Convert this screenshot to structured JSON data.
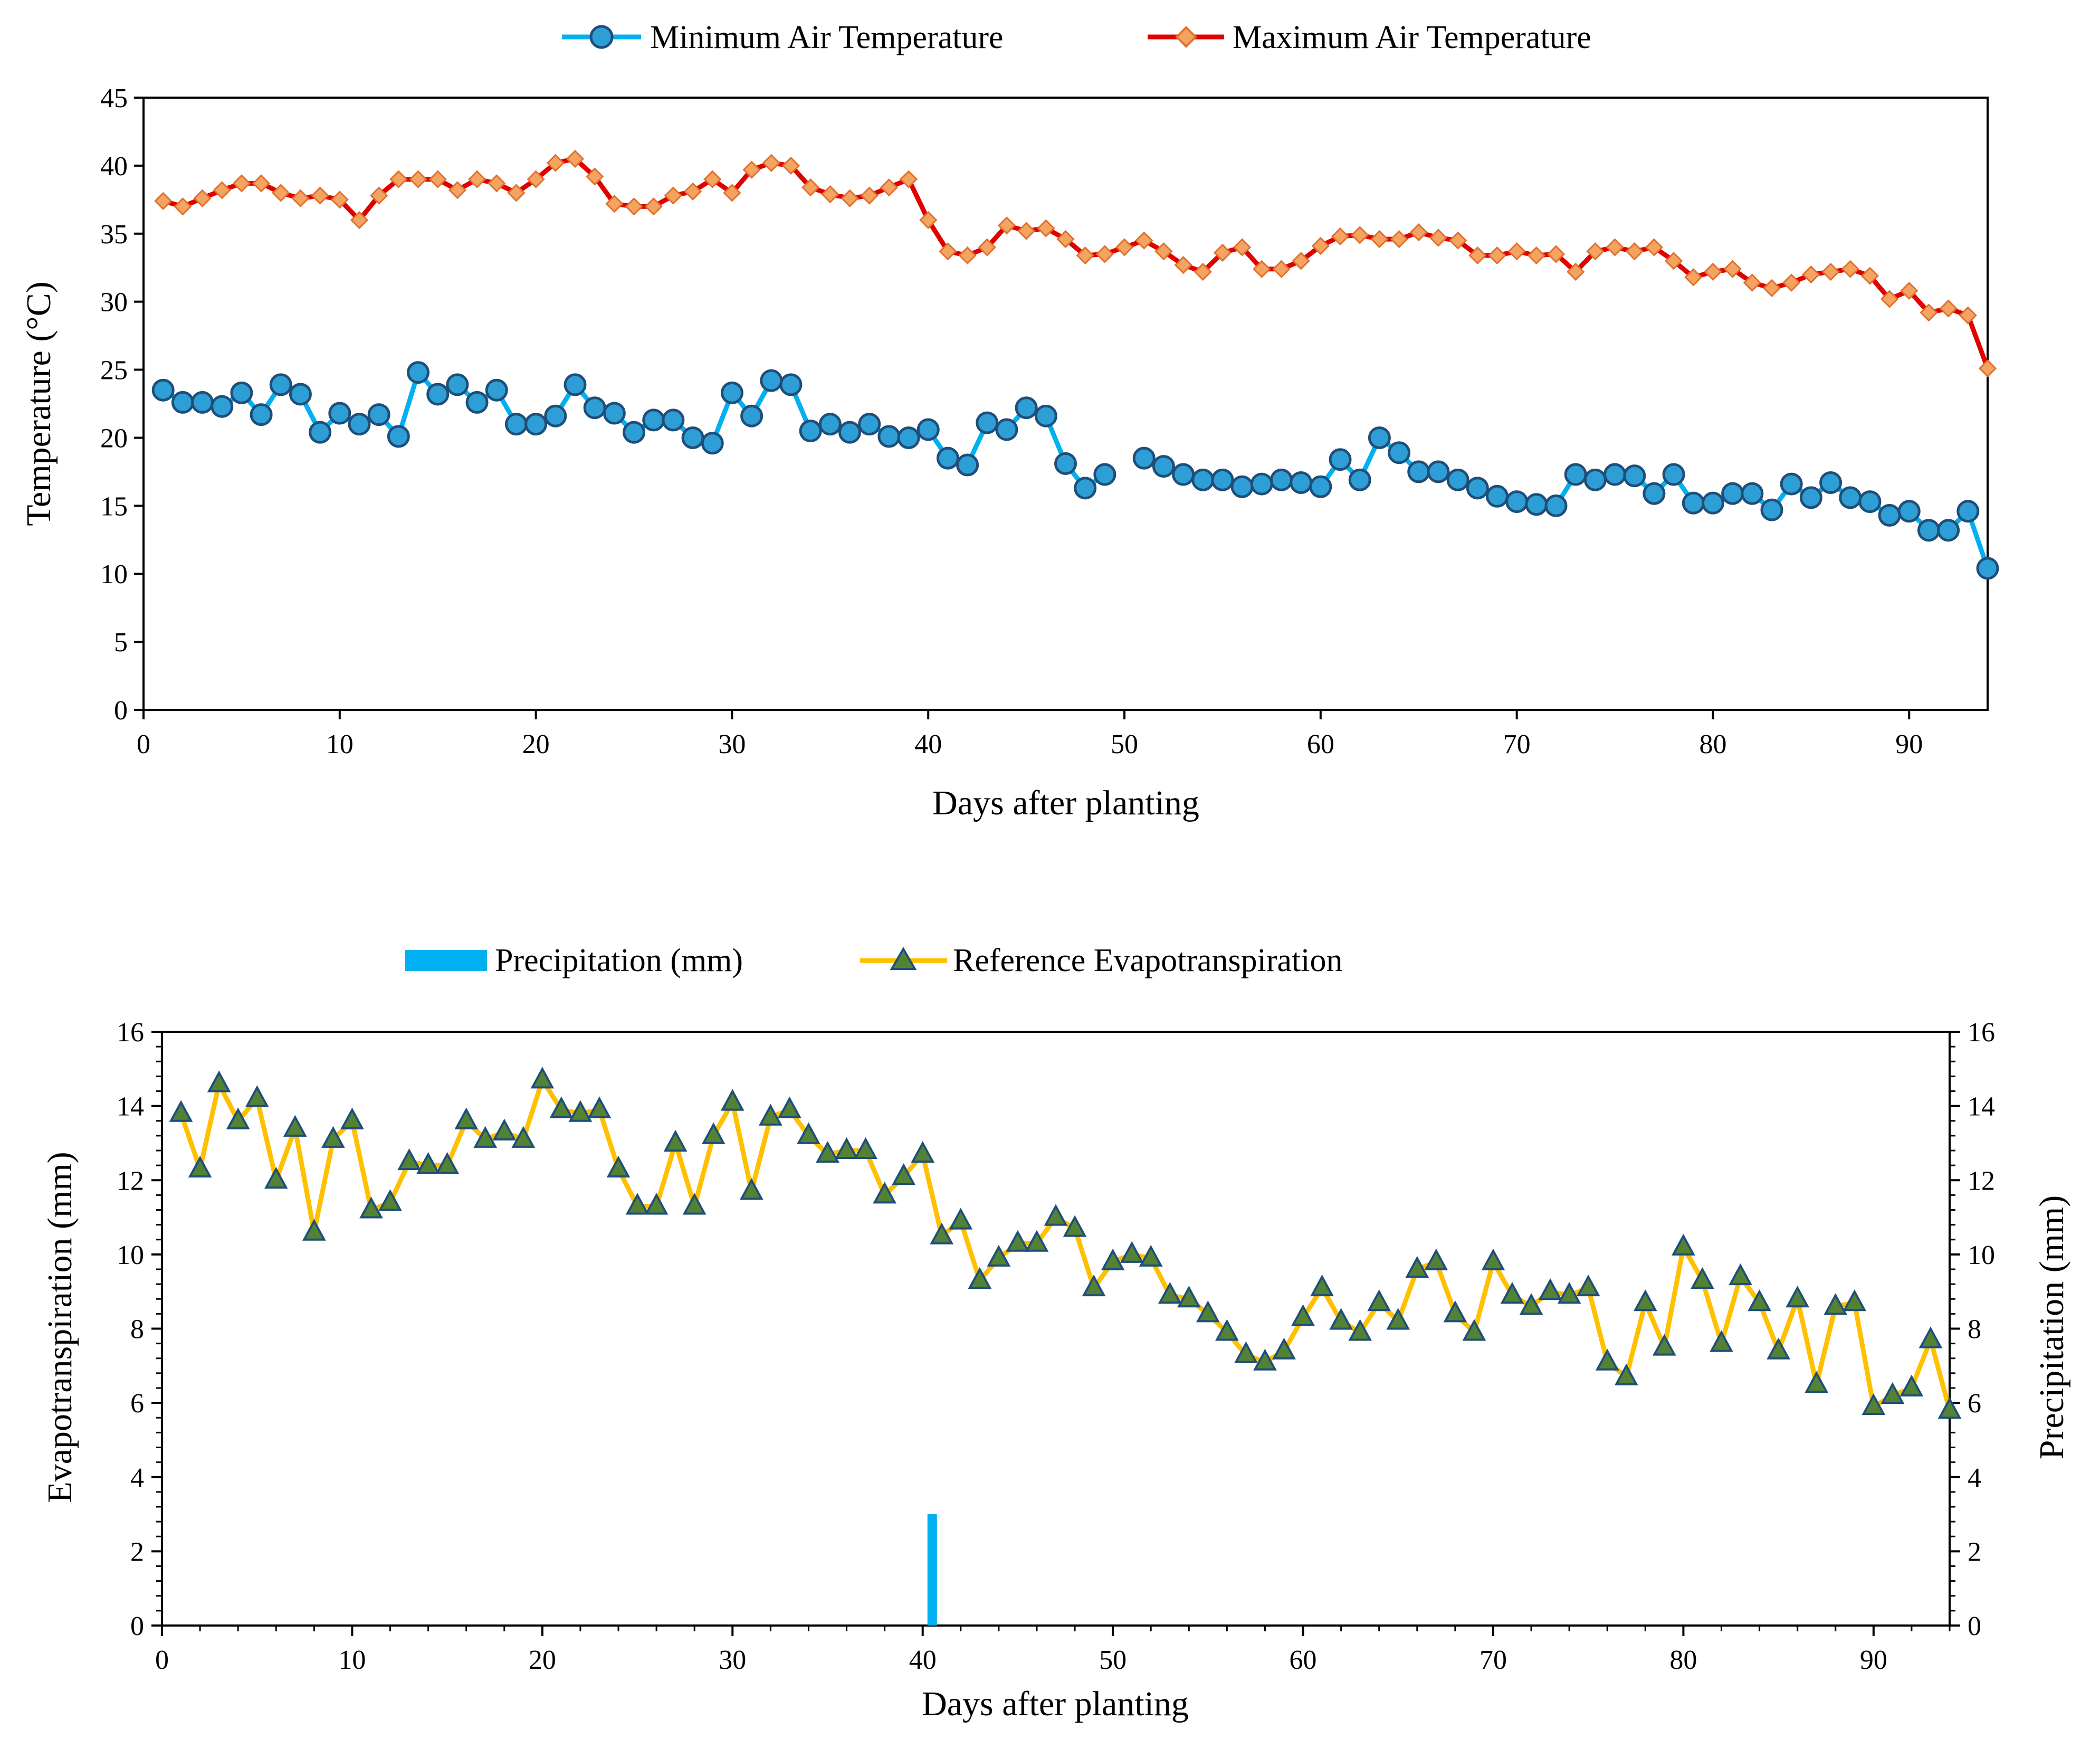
{
  "chart_data": [
    {
      "type": "line",
      "title": "",
      "xlabel": "Days after planting",
      "ylabel": "Temperature (°C)",
      "xlim": [
        0,
        94
      ],
      "ylim": [
        0,
        45
      ],
      "xticks": [
        0,
        10,
        20,
        30,
        40,
        50,
        60,
        70,
        80,
        90
      ],
      "yticks": [
        0,
        5,
        10,
        15,
        20,
        25,
        30,
        35,
        40,
        45
      ],
      "legend": "top-center",
      "grid": false,
      "series": [
        {
          "name": "Minimum Air Temperature",
          "color": "#00B0F0",
          "marker": "circle",
          "marker_fill": "#2E9FD6",
          "marker_edge": "#1F4E79",
          "x": [
            1,
            2,
            3,
            4,
            5,
            6,
            7,
            8,
            9,
            10,
            11,
            12,
            13,
            14,
            15,
            16,
            17,
            18,
            19,
            20,
            21,
            22,
            23,
            24,
            25,
            26,
            27,
            28,
            29,
            30,
            31,
            32,
            33,
            34,
            35,
            36,
            37,
            38,
            39,
            40,
            41,
            42,
            43,
            44,
            45,
            46,
            47,
            48,
            49,
            null,
            51,
            52,
            53,
            54,
            55,
            56,
            57,
            58,
            59,
            60,
            61,
            62,
            63,
            64,
            65,
            66,
            67,
            68,
            69,
            70,
            71,
            72,
            73,
            74,
            75,
            76,
            77,
            78,
            79,
            80,
            81,
            82,
            83,
            84,
            85,
            86,
            87,
            88,
            89,
            90,
            91,
            92,
            93,
            94
          ],
          "y": [
            23.5,
            22.6,
            22.6,
            22.3,
            23.3,
            21.7,
            23.9,
            23.2,
            20.4,
            21.8,
            21.0,
            21.7,
            20.1,
            24.8,
            23.2,
            23.9,
            22.6,
            23.5,
            21.0,
            21.0,
            21.6,
            23.9,
            22.2,
            21.8,
            20.4,
            21.3,
            21.3,
            20.0,
            19.6,
            23.3,
            21.6,
            24.2,
            23.9,
            20.5,
            21.0,
            20.4,
            21.0,
            20.1,
            20.0,
            20.6,
            18.5,
            18.0,
            21.1,
            20.6,
            22.2,
            21.6,
            18.1,
            16.3,
            17.3,
            null,
            18.5,
            17.9,
            17.3,
            16.9,
            16.9,
            16.4,
            16.6,
            16.9,
            16.7,
            16.4,
            18.4,
            16.9,
            20.0,
            18.9,
            17.5,
            17.5,
            16.9,
            16.3,
            15.7,
            15.3,
            15.1,
            15.0,
            17.3,
            16.9,
            17.3,
            17.2,
            15.9,
            17.3,
            15.2,
            15.2,
            15.9,
            15.9,
            14.7,
            16.6,
            15.6,
            16.7,
            15.6,
            15.3,
            14.3,
            14.6,
            13.2,
            13.2,
            14.6,
            10.4
          ]
        },
        {
          "name": "Maximum Air Temperature",
          "color": "#E00000",
          "marker": "diamond",
          "marker_fill": "#F4A460",
          "marker_edge": "#E07030",
          "x": [
            1,
            2,
            3,
            4,
            5,
            6,
            7,
            8,
            9,
            10,
            11,
            12,
            13,
            14,
            15,
            16,
            17,
            18,
            19,
            20,
            21,
            22,
            23,
            24,
            25,
            26,
            27,
            28,
            29,
            30,
            31,
            32,
            33,
            34,
            35,
            36,
            37,
            38,
            39,
            40,
            41,
            42,
            43,
            44,
            45,
            46,
            47,
            48,
            49,
            50,
            51,
            52,
            53,
            54,
            55,
            56,
            57,
            58,
            59,
            60,
            61,
            62,
            63,
            64,
            65,
            66,
            67,
            68,
            69,
            70,
            71,
            72,
            73,
            74,
            75,
            76,
            77,
            78,
            79,
            80,
            81,
            82,
            83,
            84,
            85,
            86,
            87,
            88,
            89,
            90,
            91,
            92,
            93,
            94
          ],
          "y": [
            37.4,
            37.0,
            37.6,
            38.2,
            38.7,
            38.7,
            38.0,
            37.6,
            37.8,
            37.5,
            36.0,
            37.8,
            39.0,
            39.0,
            39.0,
            38.2,
            39.0,
            38.7,
            38.0,
            39.0,
            40.2,
            40.5,
            39.2,
            37.2,
            37.0,
            37.0,
            37.8,
            38.1,
            39.0,
            38.0,
            39.7,
            40.2,
            40.0,
            38.4,
            37.9,
            37.6,
            37.8,
            38.4,
            39.0,
            36.0,
            33.7,
            33.4,
            34.0,
            35.6,
            35.2,
            35.4,
            34.6,
            33.4,
            33.5,
            34.0,
            34.5,
            33.7,
            32.7,
            32.2,
            33.6,
            34.0,
            32.4,
            32.4,
            33.0,
            34.1,
            34.8,
            34.9,
            34.6,
            34.6,
            35.1,
            34.7,
            34.5,
            33.4,
            33.4,
            33.7,
            33.4,
            33.5,
            32.2,
            33.7,
            34.0,
            33.7,
            34.0,
            33.0,
            31.8,
            32.2,
            32.4,
            31.4,
            31.0,
            31.4,
            32.0,
            32.2,
            32.4,
            31.9,
            30.2,
            30.8,
            29.2,
            29.5,
            29.0,
            25.1
          ]
        }
      ]
    },
    {
      "type": "line",
      "title": "",
      "xlabel": "Days after planting",
      "ylabel": "Evapotranspiration (mm)",
      "y2label": "Precipitation (mm)",
      "xlim": [
        0,
        94
      ],
      "ylim": [
        0,
        16
      ],
      "y2lim": [
        0,
        16
      ],
      "xticks": [
        0,
        10,
        20,
        30,
        40,
        50,
        60,
        70,
        80,
        90
      ],
      "yticks": [
        0,
        2,
        4,
        6,
        8,
        10,
        12,
        14,
        16
      ],
      "y2ticks": [
        0,
        2,
        4,
        6,
        8,
        10,
        12,
        14,
        16
      ],
      "legend": "top-center",
      "grid": false,
      "series": [
        {
          "name": "Precipitation (mm)",
          "type": "bar",
          "axis": "right",
          "color": "#00B0F0",
          "x": [
            40.5
          ],
          "y": [
            3.0
          ]
        },
        {
          "name": "Reference Evapotranspiration",
          "type": "line",
          "axis": "left",
          "color": "#FFC000",
          "marker": "triangle",
          "marker_fill": "#548235",
          "marker_edge": "#1F4E79",
          "x": [
            1,
            2,
            3,
            4,
            5,
            6,
            7,
            8,
            9,
            10,
            11,
            12,
            13,
            14,
            15,
            16,
            17,
            18,
            19,
            20,
            21,
            22,
            23,
            24,
            25,
            26,
            27,
            28,
            29,
            30,
            31,
            32,
            33,
            34,
            35,
            36,
            37,
            38,
            39,
            40,
            41,
            42,
            43,
            44,
            45,
            46,
            47,
            48,
            49,
            50,
            51,
            52,
            53,
            54,
            55,
            56,
            57,
            58,
            59,
            60,
            61,
            62,
            63,
            64,
            65,
            66,
            67,
            68,
            69,
            70,
            71,
            72,
            73,
            74,
            75,
            76,
            77,
            78,
            79,
            80,
            81,
            82,
            83,
            84,
            85,
            86,
            87,
            88,
            89,
            90,
            91,
            92,
            93,
            94
          ],
          "y": [
            13.8,
            12.3,
            14.6,
            13.6,
            14.2,
            12.0,
            13.4,
            10.6,
            13.1,
            13.6,
            11.2,
            11.4,
            12.5,
            12.4,
            12.4,
            13.6,
            13.1,
            13.3,
            13.1,
            14.7,
            13.9,
            13.8,
            13.9,
            12.3,
            11.3,
            11.3,
            13.0,
            11.3,
            13.2,
            14.1,
            11.7,
            13.7,
            13.9,
            13.2,
            12.7,
            12.8,
            12.8,
            11.6,
            12.1,
            12.7,
            10.5,
            10.9,
            9.3,
            9.9,
            10.3,
            10.3,
            11.0,
            10.7,
            9.1,
            9.8,
            10.0,
            9.9,
            8.9,
            8.8,
            8.4,
            7.9,
            7.3,
            7.1,
            7.4,
            8.3,
            9.1,
            8.2,
            7.9,
            8.7,
            8.2,
            9.6,
            9.8,
            8.4,
            7.9,
            9.8,
            8.9,
            8.6,
            9.0,
            8.9,
            9.1,
            7.1,
            6.7,
            8.7,
            7.5,
            10.2,
            9.3,
            7.6,
            9.4,
            8.7,
            7.4,
            8.8,
            6.5,
            8.6,
            8.7,
            5.9,
            6.2,
            6.4,
            7.7,
            5.8
          ]
        }
      ]
    }
  ]
}
